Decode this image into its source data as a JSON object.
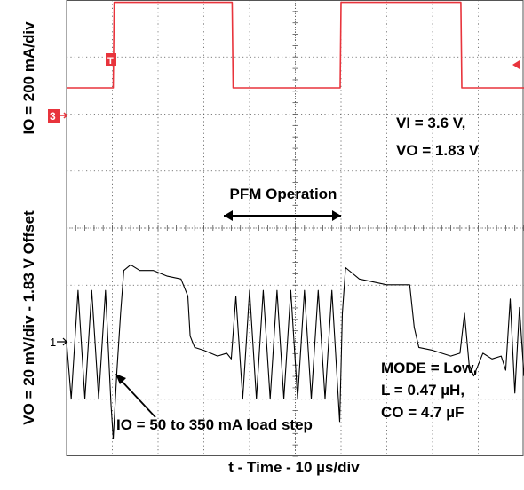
{
  "chart_data": {
    "type": "line",
    "title": "",
    "xlabel": "t - Time - 10 µs/div",
    "x_unit_per_div": "10 µs",
    "x_divisions": 10,
    "y_divisions": 8,
    "grid": true,
    "ylabel_top": "IO = 200 mA/div",
    "ylabel_bottom": "VO = 20 mV/div - 1.83 V Offset",
    "markers": {
      "ch1": "1",
      "ch3": "3",
      "trigger": "T"
    },
    "colors": {
      "current_trace": "#e8343c",
      "voltage_trace": "#000000",
      "grid": "#555555"
    },
    "annotations": {
      "vi_label": "VI = 3.6 V,",
      "vo_label": "VO = 1.83 V",
      "pfm_label": "PFM Operation",
      "mode_label": "MODE = Low,",
      "l_label": "L = 0.47 µH,",
      "co_label": "CO = 4.7 µF",
      "load_step_label": "IO = 50 to 350 mA load step"
    },
    "series": [
      {
        "channel": "3",
        "unit": "mA",
        "points": [
          [
            0,
            50
          ],
          [
            10.2,
            50
          ],
          [
            10.4,
            350
          ],
          [
            36.2,
            350
          ],
          [
            36.4,
            50
          ],
          [
            59.8,
            50
          ],
          [
            60.0,
            350
          ],
          [
            86.2,
            350
          ],
          [
            86.4,
            50
          ],
          [
            100,
            50
          ]
        ]
      },
      {
        "channel": "1",
        "unit": "mV",
        "points": [
          [
            0,
            0
          ],
          [
            1,
            -20
          ],
          [
            2.5,
            18
          ],
          [
            4,
            -20
          ],
          [
            5.5,
            18
          ],
          [
            7,
            -20
          ],
          [
            8.5,
            18
          ],
          [
            9.7,
            -22
          ],
          [
            10.2,
            -34
          ],
          [
            11,
            -10
          ],
          [
            11.8,
            10
          ],
          [
            12.5,
            25
          ],
          [
            14,
            27
          ],
          [
            16,
            25
          ],
          [
            19,
            25
          ],
          [
            22,
            23
          ],
          [
            25,
            22
          ],
          [
            26.5,
            16
          ],
          [
            27,
            2
          ],
          [
            28,
            -2
          ],
          [
            30,
            -3
          ],
          [
            33,
            -5
          ],
          [
            35,
            -4
          ],
          [
            36,
            -6
          ],
          [
            37,
            16
          ],
          [
            38.5,
            -20
          ],
          [
            40,
            18
          ],
          [
            41.5,
            -20
          ],
          [
            43,
            18
          ],
          [
            44.5,
            -20
          ],
          [
            46,
            18
          ],
          [
            47.5,
            -20
          ],
          [
            49,
            18
          ],
          [
            50.5,
            -20
          ],
          [
            52,
            18
          ],
          [
            53.5,
            -20
          ],
          [
            55,
            18
          ],
          [
            56.5,
            -20
          ],
          [
            58,
            18
          ],
          [
            59.7,
            -28
          ],
          [
            60.3,
            10
          ],
          [
            61,
            26
          ],
          [
            64,
            22
          ],
          [
            70,
            20
          ],
          [
            75,
            20
          ],
          [
            76,
            5
          ],
          [
            77,
            -2
          ],
          [
            80,
            -3
          ],
          [
            84,
            -5
          ],
          [
            86,
            -4
          ],
          [
            87,
            10
          ],
          [
            88,
            -8
          ],
          [
            89,
            -12
          ],
          [
            91,
            -4
          ],
          [
            93,
            -6
          ],
          [
            95,
            -5
          ],
          [
            96,
            -10
          ],
          [
            97,
            15
          ],
          [
            98,
            -18
          ],
          [
            99,
            12
          ],
          [
            100,
            -12
          ]
        ]
      }
    ]
  }
}
